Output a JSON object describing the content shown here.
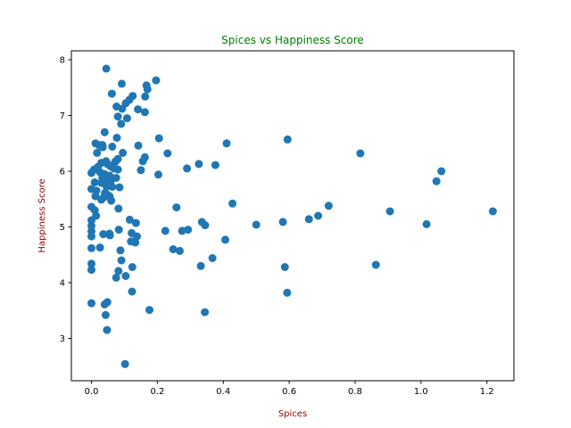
{
  "chart_data": {
    "type": "scatter",
    "title": "Spices vs Happiness Score",
    "xlabel": "Spices",
    "ylabel": "Happiness Score",
    "xlim": [
      -0.061,
      1.282
    ],
    "ylim": [
      2.24,
      8.16
    ],
    "xticks": [
      0.0,
      0.2,
      0.4,
      0.6,
      0.8,
      1.0,
      1.2
    ],
    "yticks": [
      3,
      4,
      5,
      6,
      7,
      8
    ],
    "grid": false,
    "legend": "none",
    "colors": {
      "points": "#1f77b4",
      "title": "#008000",
      "axis_label": "#8b0000",
      "axes": "#000000"
    },
    "points": [
      [
        0.045,
        7.84
      ],
      [
        0.092,
        7.57
      ],
      [
        0.196,
        7.63
      ],
      [
        0.167,
        7.54
      ],
      [
        0.17,
        7.47
      ],
      [
        0.062,
        7.39
      ],
      [
        0.125,
        7.35
      ],
      [
        0.163,
        7.34
      ],
      [
        0.115,
        7.28
      ],
      [
        0.104,
        7.22
      ],
      [
        0.076,
        7.16
      ],
      [
        0.093,
        7.12
      ],
      [
        0.141,
        7.11
      ],
      [
        0.162,
        7.06
      ],
      [
        0.08,
        6.98
      ],
      [
        0.108,
        6.95
      ],
      [
        0.09,
        6.85
      ],
      [
        0.04,
        6.7
      ],
      [
        0.077,
        6.6
      ],
      [
        0.205,
        6.59
      ],
      [
        0.595,
        6.57
      ],
      [
        0.41,
        6.5
      ],
      [
        0.012,
        6.5
      ],
      [
        0.022,
        6.47
      ],
      [
        0.142,
        6.46
      ],
      [
        0.063,
        6.44
      ],
      [
        0.034,
        6.43
      ],
      [
        0.017,
        6.33
      ],
      [
        0.095,
        6.33
      ],
      [
        0.231,
        6.32
      ],
      [
        0.816,
        6.32
      ],
      [
        0.162,
        6.25
      ],
      [
        0.08,
        6.22
      ],
      [
        0.156,
        6.18
      ],
      [
        0.326,
        6.13
      ],
      [
        0.03,
        6.15
      ],
      [
        0.044,
        6.18
      ],
      [
        0.048,
        6.13
      ],
      [
        0.058,
        6.09
      ],
      [
        0.068,
        6.05
      ],
      [
        0.376,
        6.11
      ],
      [
        0.29,
        6.05
      ],
      [
        0.02,
        6.08
      ],
      [
        0.008,
        6.03
      ],
      [
        0.15,
        6.02
      ],
      [
        0.08,
        6.03
      ],
      [
        1.062,
        6.0
      ],
      [
        0.203,
        5.94
      ],
      [
        0.0,
        5.97
      ],
      [
        0.026,
        5.98
      ],
      [
        0.039,
        5.95
      ],
      [
        0.055,
        5.92
      ],
      [
        0.075,
        5.88
      ],
      [
        0.045,
        5.84
      ],
      [
        0.033,
        5.88
      ],
      [
        0.058,
        5.82
      ],
      [
        1.047,
        5.82
      ],
      [
        0.01,
        5.8
      ],
      [
        0.03,
        5.79
      ],
      [
        0.05,
        5.76
      ],
      [
        0.063,
        5.72
      ],
      [
        0.085,
        5.71
      ],
      [
        0.0,
        5.68
      ],
      [
        0.015,
        5.65
      ],
      [
        0.041,
        5.61
      ],
      [
        0.048,
        5.58
      ],
      [
        0.055,
        5.55
      ],
      [
        0.037,
        5.53
      ],
      [
        0.012,
        5.55
      ],
      [
        0.03,
        5.49
      ],
      [
        0.06,
        5.47
      ],
      [
        0.428,
        5.42
      ],
      [
        0.72,
        5.38
      ],
      [
        0.258,
        5.35
      ],
      [
        0.0,
        5.36
      ],
      [
        0.082,
        5.33
      ],
      [
        0.01,
        5.3
      ],
      [
        0.906,
        5.28
      ],
      [
        1.218,
        5.28
      ],
      [
        0.014,
        5.2
      ],
      [
        0.688,
        5.2
      ],
      [
        0.66,
        5.14
      ],
      [
        0.116,
        5.13
      ],
      [
        0.0,
        5.12
      ],
      [
        0.581,
        5.09
      ],
      [
        0.335,
        5.09
      ],
      [
        0.135,
        5.07
      ],
      [
        0.5,
        5.04
      ],
      [
        1.017,
        5.05
      ],
      [
        0.345,
        5.03
      ],
      [
        0.0,
        5.02
      ],
      [
        0.293,
        4.95
      ],
      [
        0.083,
        4.95
      ],
      [
        0.275,
        4.93
      ],
      [
        0.224,
        4.93
      ],
      [
        0.0,
        4.92
      ],
      [
        0.122,
        4.89
      ],
      [
        0.036,
        4.87
      ],
      [
        0.055,
        4.88
      ],
      [
        0.056,
        4.85
      ],
      [
        0.0,
        4.83
      ],
      [
        0.138,
        4.83
      ],
      [
        0.406,
        4.77
      ],
      [
        0.12,
        4.74
      ],
      [
        0.133,
        4.72
      ],
      [
        0.0,
        4.62
      ],
      [
        0.026,
        4.63
      ],
      [
        0.088,
        4.58
      ],
      [
        0.248,
        4.6
      ],
      [
        0.268,
        4.57
      ],
      [
        0.367,
        4.44
      ],
      [
        0.091,
        4.4
      ],
      [
        0.0,
        4.34
      ],
      [
        0.332,
        4.3
      ],
      [
        0.124,
        4.28
      ],
      [
        0.863,
        4.32
      ],
      [
        0.587,
        4.28
      ],
      [
        0.0,
        4.23
      ],
      [
        0.082,
        4.21
      ],
      [
        0.104,
        4.12
      ],
      [
        0.075,
        4.09
      ],
      [
        0.123,
        3.84
      ],
      [
        0.594,
        3.82
      ],
      [
        0.048,
        3.65
      ],
      [
        0.0,
        3.63
      ],
      [
        0.04,
        3.61
      ],
      [
        0.176,
        3.51
      ],
      [
        0.043,
        3.42
      ],
      [
        0.344,
        3.47
      ],
      [
        0.047,
        3.15
      ],
      [
        0.102,
        2.54
      ],
      [
        0.033,
        6.47
      ],
      [
        0.072,
        6.17
      ],
      [
        0.046,
        5.72
      ],
      [
        0.052,
        5.8
      ]
    ]
  }
}
